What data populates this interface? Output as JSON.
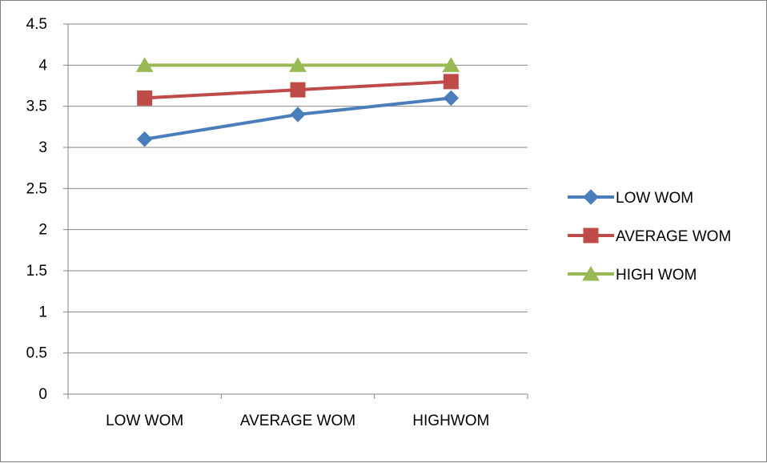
{
  "chart_data": {
    "type": "line",
    "title": "",
    "xlabel": "",
    "ylabel": "",
    "categories": [
      "LOW WOM",
      "AVERAGE WOM",
      "HIGHWOM"
    ],
    "ylim": [
      0,
      4.5
    ],
    "y_ticks": [
      "0",
      "0.5",
      "1",
      "1.5",
      "2",
      "2.5",
      "3",
      "3.5",
      "4",
      "4.5"
    ],
    "grid": true,
    "legend_position": "right",
    "series": [
      {
        "name": "LOW WOM",
        "values": [
          3.1,
          3.4,
          3.6
        ],
        "color": "#4a7ebb",
        "marker": "diamond"
      },
      {
        "name": "AVERAGE WOM",
        "values": [
          3.6,
          3.7,
          3.8
        ],
        "color": "#be4b48",
        "marker": "square"
      },
      {
        "name": "HIGH WOM",
        "values": [
          4.0,
          4.0,
          4.0
        ],
        "color": "#98b954",
        "marker": "triangle"
      }
    ]
  }
}
